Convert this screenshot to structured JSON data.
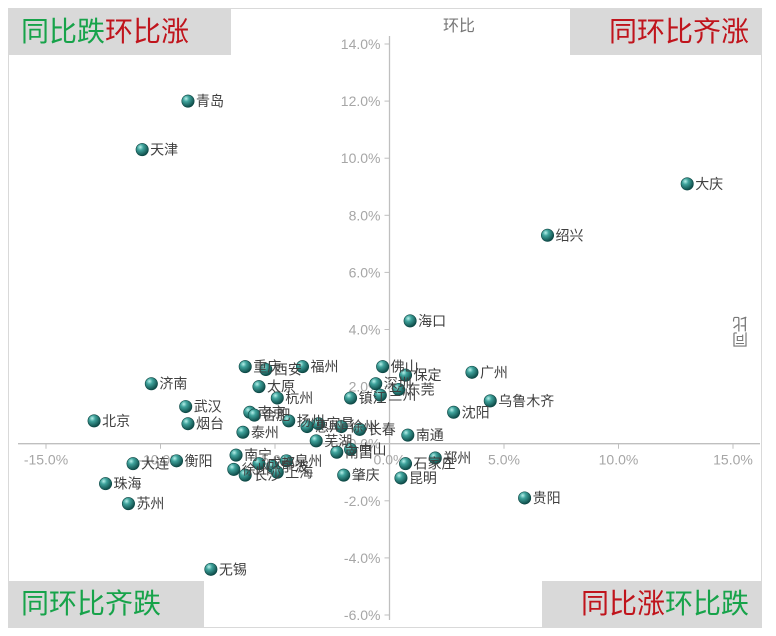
{
  "quadrants": {
    "top_left": {
      "part1": "同比跌",
      "part2": "环比涨"
    },
    "top_right": {
      "part1": "同环比齐涨"
    },
    "bottom_left": {
      "part1": "同环比齐跌"
    },
    "bottom_right": {
      "part1": "同比涨",
      "part2": "环比跌"
    }
  },
  "colors": {
    "marker": "#2e8b86",
    "quadrant_bg": "#d9d9d9",
    "green_text": "#17a34a",
    "red_text": "#c0141c",
    "axis": "#bfbfbf"
  },
  "chart_data": {
    "type": "scatter",
    "ylabel": "环比",
    "xlabel": "同比",
    "xlim": [
      -0.15,
      0.15
    ],
    "ylim": [
      -0.06,
      0.14
    ],
    "x_ticks": [
      "-15.0%",
      "-10.0%",
      "-5.0%",
      "0.0%",
      "5.0%",
      "10.0%",
      "15.0%"
    ],
    "y_ticks": [
      "-6.0%",
      "-4.0%",
      "-2.0%",
      "0.0%",
      "2.0%",
      "4.0%",
      "6.0%",
      "8.0%",
      "10.0%",
      "12.0%",
      "14.0%"
    ],
    "grid": false,
    "points": [
      {
        "label": "青岛",
        "x": -0.088,
        "y": 0.12
      },
      {
        "label": "天津",
        "x": -0.108,
        "y": 0.103
      },
      {
        "label": "大庆",
        "x": 0.13,
        "y": 0.091
      },
      {
        "label": "绍兴",
        "x": 0.069,
        "y": 0.073
      },
      {
        "label": "海口",
        "x": 0.009,
        "y": 0.043
      },
      {
        "label": "佛山",
        "x": -0.003,
        "y": 0.027
      },
      {
        "label": "保定",
        "x": 0.007,
        "y": 0.024
      },
      {
        "label": "广州",
        "x": 0.036,
        "y": 0.025
      },
      {
        "label": "深圳",
        "x": -0.006,
        "y": 0.021
      },
      {
        "label": "东莞",
        "x": 0.004,
        "y": 0.019
      },
      {
        "label": "镇江",
        "x": -0.017,
        "y": 0.016
      },
      {
        "label": "兰州",
        "x": -0.004,
        "y": 0.017
      },
      {
        "label": "沈阳",
        "x": 0.028,
        "y": 0.011
      },
      {
        "label": "乌鲁木齐",
        "x": 0.044,
        "y": 0.015
      },
      {
        "label": "重庆",
        "x": -0.063,
        "y": 0.027
      },
      {
        "label": "西安",
        "x": -0.054,
        "y": 0.026
      },
      {
        "label": "福州",
        "x": -0.038,
        "y": 0.027
      },
      {
        "label": "太原",
        "x": -0.057,
        "y": 0.02
      },
      {
        "label": "杭州",
        "x": -0.049,
        "y": 0.016
      },
      {
        "label": "济南",
        "x": -0.104,
        "y": 0.021
      },
      {
        "label": "武汉",
        "x": -0.089,
        "y": 0.013
      },
      {
        "label": "北京",
        "x": -0.129,
        "y": 0.008
      },
      {
        "label": "南京",
        "x": -0.061,
        "y": 0.011
      },
      {
        "label": "合肥",
        "x": -0.059,
        "y": 0.01
      },
      {
        "label": "扬州",
        "x": -0.044,
        "y": 0.008
      },
      {
        "label": "惠州",
        "x": -0.036,
        "y": 0.006
      },
      {
        "label": "宜昌",
        "x": -0.031,
        "y": 0.007
      },
      {
        "label": "徐州",
        "x": -0.021,
        "y": 0.006
      },
      {
        "label": "长春",
        "x": -0.013,
        "y": 0.005
      },
      {
        "label": "泰州",
        "x": -0.064,
        "y": 0.004
      },
      {
        "label": "烟台",
        "x": -0.088,
        "y": 0.007
      },
      {
        "label": "南通",
        "x": 0.008,
        "y": 0.003
      },
      {
        "label": "郑州",
        "x": 0.02,
        "y": -0.005
      },
      {
        "label": "芜湖",
        "x": -0.032,
        "y": 0.001
      },
      {
        "label": "中山",
        "x": -0.017,
        "y": -0.002
      },
      {
        "label": "南昌",
        "x": -0.023,
        "y": -0.003
      },
      {
        "label": "衡阳",
        "x": -0.093,
        "y": -0.006
      },
      {
        "label": "大连",
        "x": -0.112,
        "y": -0.007
      },
      {
        "label": "珠海",
        "x": -0.124,
        "y": -0.014
      },
      {
        "label": "南宁",
        "x": -0.067,
        "y": -0.004
      },
      {
        "label": "成都",
        "x": -0.057,
        "y": -0.007
      },
      {
        "label": "宁波",
        "x": -0.051,
        "y": -0.008
      },
      {
        "label": "泉州",
        "x": -0.045,
        "y": -0.006
      },
      {
        "label": "长沙",
        "x": -0.063,
        "y": -0.011
      },
      {
        "label": "徐州",
        "x": -0.068,
        "y": -0.009
      },
      {
        "label": "上海",
        "x": -0.049,
        "y": -0.01
      },
      {
        "label": "肇庆",
        "x": -0.02,
        "y": -0.011
      },
      {
        "label": "石家庄",
        "x": 0.007,
        "y": -0.007
      },
      {
        "label": "昆明",
        "x": 0.005,
        "y": -0.012
      },
      {
        "label": "苏州",
        "x": -0.114,
        "y": -0.021
      },
      {
        "label": "贵阳",
        "x": 0.059,
        "y": -0.019
      },
      {
        "label": "无锡",
        "x": -0.078,
        "y": -0.044
      }
    ]
  }
}
